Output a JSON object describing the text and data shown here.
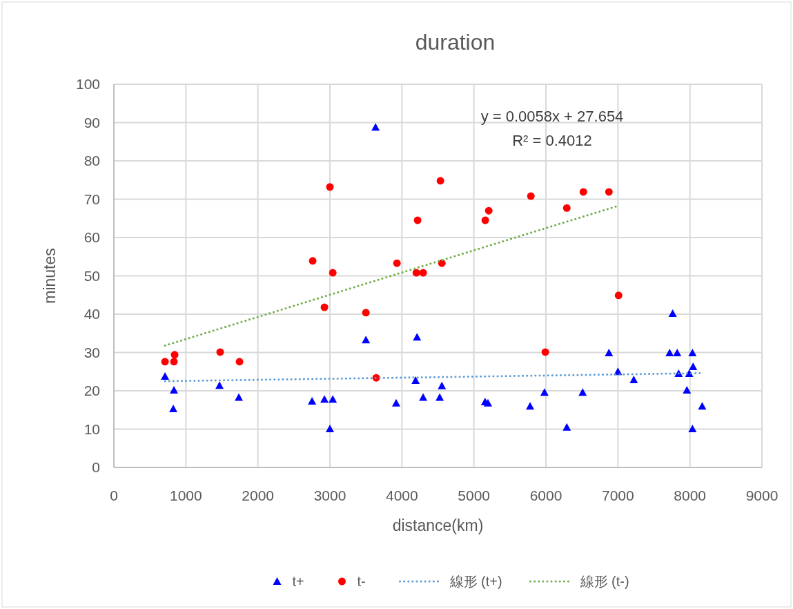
{
  "chart_data": {
    "type": "scatter",
    "title": "duration",
    "xlabel": "distance(km)",
    "ylabel": "minutes",
    "xlim": [
      0,
      9000
    ],
    "xticks": [
      0,
      1000,
      2000,
      3000,
      4000,
      5000,
      6000,
      7000,
      8000,
      9000
    ],
    "ylim": [
      0,
      100
    ],
    "yticks": [
      0,
      10,
      20,
      30,
      40,
      50,
      60,
      70,
      80,
      90,
      100
    ],
    "grid": true,
    "legend": "bottom",
    "annotations": [
      "y = 0.0058x + 27.654",
      "R² = 0.4012"
    ],
    "series": [
      {
        "name": "t+",
        "color": "#0000ff",
        "marker": "triangle",
        "x": [
          710,
          834,
          825,
          1467,
          1735,
          2752,
          2924,
          3040,
          3000,
          3634,
          3500,
          3920,
          4210,
          4190,
          4295,
          4525,
          4555,
          5155,
          5195,
          5780,
          5980,
          6290,
          6510,
          6875,
          7000,
          7220,
          7718,
          7823,
          7760,
          7843,
          7958,
          7990,
          8035,
          8044,
          8035,
          8170
        ],
        "values": [
          23.8,
          20.2,
          15.3,
          21.4,
          18.3,
          17.3,
          17.8,
          17.8,
          10.1,
          88.8,
          33.3,
          16.8,
          34,
          22.7,
          18.3,
          18.3,
          21.3,
          17.1,
          16.8,
          16,
          19.6,
          10.5,
          19.6,
          29.9,
          25,
          22.9,
          29.9,
          29.9,
          40.2,
          24.5,
          20.2,
          24.5,
          29.9,
          26.3,
          10.1,
          16
        ]
      },
      {
        "name": "t-",
        "color": "#ff0000",
        "marker": "circle",
        "x": [
          710,
          834,
          844,
          1476,
          1745,
          2761,
          2924,
          3000,
          3040,
          3500,
          3643,
          3931,
          4200,
          4218,
          4295,
          4535,
          4555,
          5158,
          5206,
          5791,
          5992,
          6290,
          6520,
          6875,
          7009
        ],
        "values": [
          27.6,
          27.6,
          29.4,
          30.1,
          27.6,
          53.9,
          41.8,
          73.2,
          50.8,
          40.4,
          23.4,
          53.3,
          50.8,
          64.5,
          50.8,
          74.8,
          53.3,
          64.5,
          67,
          70.8,
          30.1,
          67.7,
          71.9,
          71.9,
          44.9
        ]
      },
      {
        "name": "線形 (t+)",
        "type": "line",
        "color": "#5b9bd5",
        "marker": "none",
        "line_style": "dotted",
        "x": [
          710,
          8170
        ],
        "values": [
          22.5,
          24.6
        ]
      },
      {
        "name": "線形 (t-)",
        "type": "line",
        "color": "#70ad47",
        "marker": "none",
        "line_style": "dotted",
        "x": [
          710,
          7009
        ],
        "values": [
          31.8,
          68.3
        ]
      }
    ]
  }
}
